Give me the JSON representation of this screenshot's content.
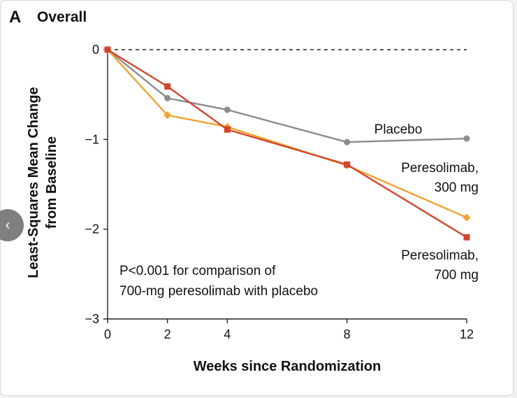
{
  "panel": {
    "letter": "A",
    "title": "Overall"
  },
  "nav": {
    "prev_icon": "‹"
  },
  "chart_data": {
    "type": "line",
    "title": "Overall",
    "xlabel": "Weeks since Randomization",
    "ylabel_lines": [
      "Least-Squares Mean Change",
      "from Baseline"
    ],
    "x_ticks": [
      0,
      2,
      4,
      8,
      12
    ],
    "y_ticks": [
      0,
      -1,
      -2,
      -3
    ],
    "y_tick_labels": [
      "0",
      "−1",
      "−2",
      "−3"
    ],
    "xlim": [
      0,
      12
    ],
    "ylim": [
      -3,
      0
    ],
    "reference_line": 0,
    "annotation_lines": [
      "P<0.001 for comparison of",
      "700-mg peresolimab with placebo"
    ],
    "series": [
      {
        "name": "Placebo",
        "label_lines": [
          "Placebo"
        ],
        "color": "#8a8c8e",
        "marker": "circle",
        "x": [
          0,
          2,
          4,
          8,
          12
        ],
        "y": [
          0,
          -0.54,
          -0.67,
          -1.03,
          -0.99
        ]
      },
      {
        "name": "Peresolimab, 300 mg",
        "label_lines": [
          "Peresolimab,",
          "300 mg"
        ],
        "color": "#f0a22e",
        "marker": "diamond",
        "x": [
          0,
          2,
          4,
          8,
          12
        ],
        "y": [
          0,
          -0.73,
          -0.86,
          -1.29,
          -1.87
        ]
      },
      {
        "name": "Peresolimab, 700 mg",
        "label_lines": [
          "Peresolimab,",
          "700 mg"
        ],
        "color": "#d2452d",
        "marker": "square",
        "x": [
          0,
          2,
          4,
          8,
          12
        ],
        "y": [
          0,
          -0.41,
          -0.89,
          -1.28,
          -2.09
        ]
      }
    ]
  }
}
